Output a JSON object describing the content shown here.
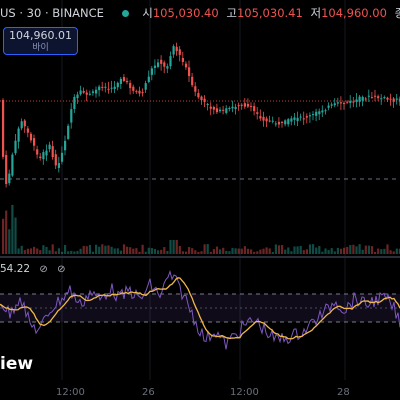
{
  "header": {
    "symbol": "US · 30 · BINANCE",
    "status_color": "#26a69a",
    "open_label": "시",
    "open_value": "105,030.40",
    "high_label": "고",
    "high_value": "105,030.41",
    "low_label": "저",
    "low_value": "104,960.00",
    "close_label": "종"
  },
  "price_badge": {
    "value": "104,960.01",
    "sub": "바이"
  },
  "rsi": {
    "value": "54.22",
    "icon_a": "⊘",
    "icon_b": "⊘"
  },
  "watermark": "iew",
  "time_axis": [
    "12:00",
    "26",
    "12:00",
    "28"
  ],
  "colors": {
    "up": "#26a69a",
    "down": "#ef5350",
    "rsi_line": "#7e57c2",
    "rsi_ma": "#f0b849",
    "accent": "#2962ff"
  }
}
